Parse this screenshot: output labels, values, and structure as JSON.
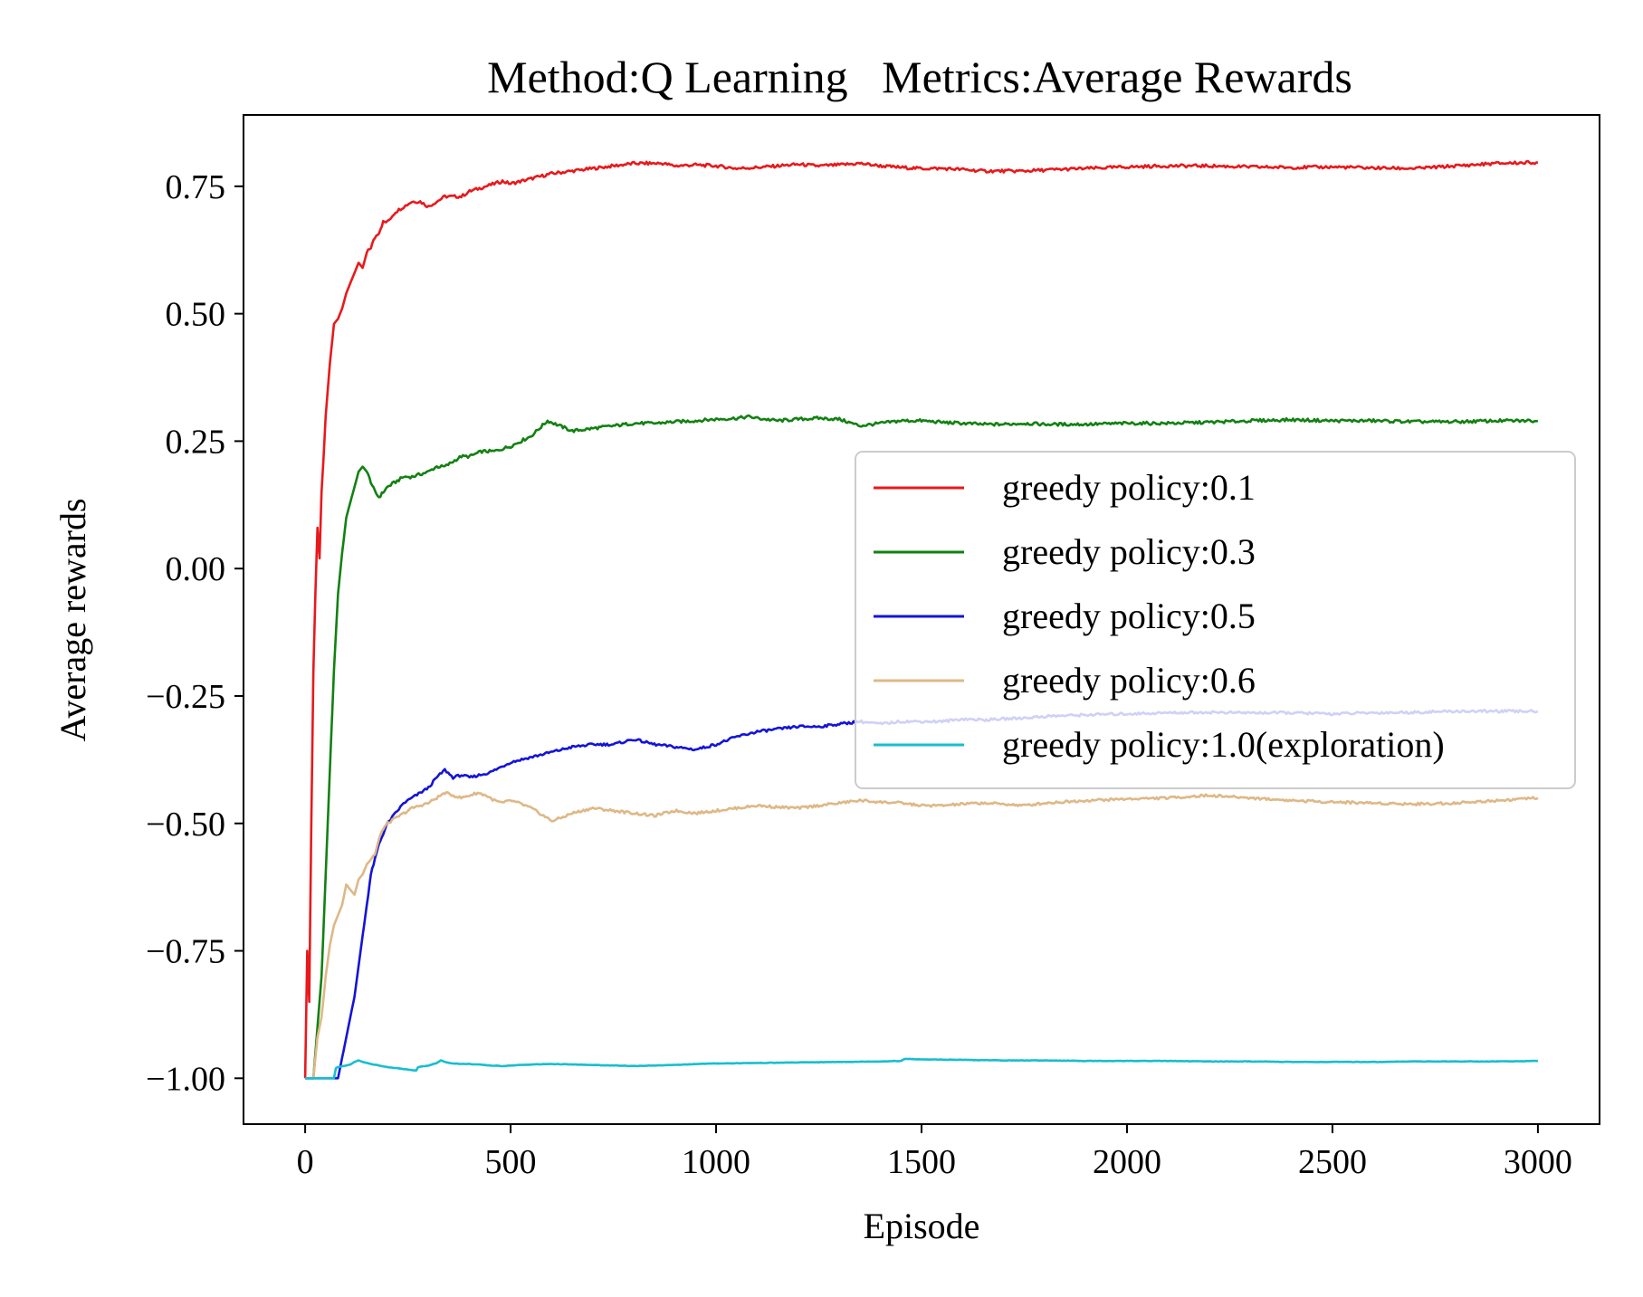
{
  "chart_data": {
    "type": "line",
    "title": "Method:Q Learning   Metrics:Average Rewards",
    "xlabel": "Episode",
    "ylabel": "Average rewards",
    "xlim": [
      -150,
      3150
    ],
    "ylim": [
      -1.09,
      0.89
    ],
    "xticks": [
      0,
      500,
      1000,
      1500,
      2000,
      2500,
      3000
    ],
    "xtick_labels": [
      "0",
      "500",
      "1000",
      "1500",
      "2000",
      "2500",
      "3000"
    ],
    "yticks": [
      0.75,
      0.5,
      0.25,
      0.0,
      -0.25,
      -0.5,
      -0.75,
      -1.0
    ],
    "ytick_labels": [
      "0.75",
      "0.50",
      "0.25",
      "0.00",
      "−0.25",
      "−0.50",
      "−0.75",
      "−1.00"
    ],
    "grid": false,
    "legend_position": "center-right",
    "series": [
      {
        "name": "greedy policy:0.1",
        "color": "#e8191c",
        "x": [
          0,
          5,
          10,
          15,
          20,
          25,
          30,
          35,
          40,
          45,
          50,
          60,
          70,
          80,
          90,
          100,
          110,
          120,
          130,
          140,
          150,
          160,
          170,
          180,
          190,
          200,
          220,
          240,
          260,
          280,
          300,
          320,
          340,
          360,
          380,
          400,
          420,
          440,
          460,
          480,
          500,
          550,
          600,
          650,
          700,
          750,
          800,
          850,
          870,
          900,
          950,
          1000,
          1050,
          1100,
          1150,
          1200,
          1250,
          1300,
          1350,
          1400,
          1450,
          1500,
          1550,
          1600,
          1650,
          1700,
          1750,
          1800,
          1900,
          2000,
          2100,
          2200,
          2300,
          2400,
          2500,
          2600,
          2700,
          2800,
          2900,
          3000
        ],
        "y": [
          -1.0,
          -0.75,
          -0.85,
          -0.5,
          -0.2,
          -0.05,
          0.08,
          0.02,
          0.15,
          0.22,
          0.3,
          0.4,
          0.48,
          0.49,
          0.51,
          0.54,
          0.56,
          0.58,
          0.6,
          0.59,
          0.62,
          0.63,
          0.65,
          0.66,
          0.68,
          0.68,
          0.7,
          0.71,
          0.72,
          0.72,
          0.71,
          0.72,
          0.73,
          0.73,
          0.73,
          0.74,
          0.745,
          0.75,
          0.755,
          0.76,
          0.755,
          0.765,
          0.775,
          0.78,
          0.785,
          0.79,
          0.795,
          0.795,
          0.795,
          0.79,
          0.792,
          0.79,
          0.785,
          0.787,
          0.79,
          0.793,
          0.79,
          0.792,
          0.795,
          0.79,
          0.787,
          0.785,
          0.785,
          0.783,
          0.78,
          0.78,
          0.78,
          0.782,
          0.785,
          0.788,
          0.79,
          0.79,
          0.788,
          0.787,
          0.788,
          0.786,
          0.785,
          0.79,
          0.795,
          0.797
        ]
      },
      {
        "name": "greedy policy:0.3",
        "color": "#128112",
        "x": [
          0,
          20,
          30,
          40,
          50,
          60,
          70,
          80,
          90,
          100,
          110,
          120,
          130,
          140,
          150,
          160,
          170,
          180,
          190,
          200,
          220,
          240,
          260,
          280,
          300,
          320,
          340,
          360,
          380,
          400,
          430,
          460,
          500,
          550,
          590,
          620,
          650,
          700,
          750,
          800,
          850,
          900,
          950,
          1000,
          1050,
          1080,
          1100,
          1150,
          1200,
          1250,
          1300,
          1350,
          1400,
          1450,
          1500,
          1550,
          1600,
          1650,
          1700,
          1750,
          1800,
          1900,
          2000,
          2100,
          2200,
          2300,
          2400,
          2500,
          2600,
          2700,
          2800,
          2900,
          3000
        ],
        "y": [
          -1.0,
          -1.0,
          -0.9,
          -0.8,
          -0.6,
          -0.4,
          -0.2,
          -0.05,
          0.03,
          0.1,
          0.13,
          0.16,
          0.19,
          0.2,
          0.19,
          0.17,
          0.15,
          0.14,
          0.15,
          0.16,
          0.17,
          0.18,
          0.18,
          0.185,
          0.19,
          0.2,
          0.2,
          0.21,
          0.22,
          0.22,
          0.23,
          0.23,
          0.24,
          0.26,
          0.29,
          0.28,
          0.27,
          0.275,
          0.28,
          0.285,
          0.285,
          0.288,
          0.29,
          0.293,
          0.295,
          0.298,
          0.295,
          0.29,
          0.293,
          0.295,
          0.293,
          0.28,
          0.285,
          0.29,
          0.29,
          0.287,
          0.285,
          0.283,
          0.283,
          0.285,
          0.283,
          0.283,
          0.285,
          0.285,
          0.287,
          0.29,
          0.292,
          0.29,
          0.29,
          0.288,
          0.288,
          0.29,
          0.29
        ]
      },
      {
        "name": "greedy policy:0.5",
        "color": "#1414d8",
        "x": [
          0,
          80,
          90,
          100,
          110,
          120,
          130,
          140,
          150,
          160,
          170,
          180,
          190,
          200,
          220,
          240,
          260,
          280,
          300,
          320,
          340,
          360,
          380,
          400,
          450,
          500,
          550,
          600,
          650,
          700,
          750,
          800,
          850,
          900,
          950,
          1000,
          1050,
          1100,
          1150,
          1200,
          1250,
          1300,
          1350,
          1400,
          1450,
          1500,
          1550,
          1600,
          1650,
          1700,
          1750,
          1800,
          1900,
          2000,
          2100,
          2200,
          2300,
          2400,
          2500,
          2600,
          2700,
          2800,
          2900,
          3000
        ],
        "y": [
          -1.0,
          -1.0,
          -0.96,
          -0.92,
          -0.88,
          -0.84,
          -0.78,
          -0.72,
          -0.66,
          -0.6,
          -0.57,
          -0.54,
          -0.52,
          -0.5,
          -0.48,
          -0.46,
          -0.45,
          -0.44,
          -0.43,
          -0.41,
          -0.395,
          -0.41,
          -0.405,
          -0.41,
          -0.4,
          -0.38,
          -0.37,
          -0.36,
          -0.35,
          -0.345,
          -0.345,
          -0.335,
          -0.345,
          -0.35,
          -0.355,
          -0.345,
          -0.33,
          -0.32,
          -0.315,
          -0.31,
          -0.31,
          -0.305,
          -0.3,
          -0.305,
          -0.3,
          -0.3,
          -0.3,
          -0.295,
          -0.297,
          -0.295,
          -0.293,
          -0.29,
          -0.287,
          -0.285,
          -0.283,
          -0.282,
          -0.283,
          -0.283,
          -0.285,
          -0.283,
          -0.282,
          -0.28,
          -0.28,
          -0.28
        ]
      },
      {
        "name": "greedy policy:0.6",
        "color": "#deb887",
        "x": [
          0,
          20,
          30,
          40,
          50,
          60,
          70,
          80,
          90,
          100,
          110,
          120,
          130,
          140,
          150,
          160,
          170,
          180,
          190,
          200,
          220,
          240,
          260,
          280,
          300,
          320,
          340,
          360,
          380,
          400,
          420,
          440,
          460,
          480,
          500,
          520,
          550,
          580,
          600,
          620,
          650,
          700,
          750,
          800,
          850,
          900,
          950,
          1000,
          1050,
          1100,
          1150,
          1200,
          1250,
          1300,
          1350,
          1400,
          1450,
          1500,
          1550,
          1600,
          1650,
          1700,
          1750,
          1800,
          1900,
          2000,
          2100,
          2200,
          2300,
          2400,
          2500,
          2600,
          2700,
          2800,
          2900,
          3000
        ],
        "y": [
          -1.0,
          -1.0,
          -0.92,
          -0.88,
          -0.8,
          -0.74,
          -0.7,
          -0.68,
          -0.66,
          -0.62,
          -0.63,
          -0.64,
          -0.61,
          -0.6,
          -0.58,
          -0.57,
          -0.56,
          -0.53,
          -0.51,
          -0.5,
          -0.49,
          -0.48,
          -0.47,
          -0.465,
          -0.46,
          -0.45,
          -0.44,
          -0.445,
          -0.45,
          -0.445,
          -0.44,
          -0.445,
          -0.455,
          -0.46,
          -0.455,
          -0.46,
          -0.47,
          -0.485,
          -0.495,
          -0.49,
          -0.48,
          -0.47,
          -0.475,
          -0.48,
          -0.485,
          -0.475,
          -0.48,
          -0.475,
          -0.47,
          -0.465,
          -0.468,
          -0.47,
          -0.465,
          -0.46,
          -0.455,
          -0.458,
          -0.46,
          -0.465,
          -0.465,
          -0.462,
          -0.46,
          -0.462,
          -0.465,
          -0.46,
          -0.455,
          -0.452,
          -0.45,
          -0.445,
          -0.45,
          -0.455,
          -0.458,
          -0.46,
          -0.462,
          -0.46,
          -0.455,
          -0.45
        ]
      },
      {
        "name": "greedy policy:1.0(exploration)",
        "color": "#17becf",
        "x": [
          0,
          70,
          75,
          80,
          100,
          110,
          120,
          130,
          140,
          160,
          180,
          200,
          220,
          250,
          270,
          275,
          300,
          320,
          330,
          340,
          350,
          380,
          400,
          420,
          450,
          480,
          500,
          550,
          600,
          650,
          700,
          750,
          800,
          850,
          900,
          950,
          1000,
          1100,
          1200,
          1300,
          1400,
          1450,
          1460,
          1500,
          1600,
          1700,
          1800,
          1900,
          2000,
          2100,
          2200,
          2300,
          2400,
          2500,
          2600,
          2700,
          2800,
          2900,
          3000
        ],
        "y": [
          -1.0,
          -1.0,
          -0.98,
          -0.978,
          -0.975,
          -0.973,
          -0.968,
          -0.965,
          -0.968,
          -0.972,
          -0.975,
          -0.978,
          -0.98,
          -0.983,
          -0.985,
          -0.978,
          -0.975,
          -0.97,
          -0.965,
          -0.968,
          -0.97,
          -0.972,
          -0.972,
          -0.973,
          -0.975,
          -0.976,
          -0.975,
          -0.973,
          -0.972,
          -0.973,
          -0.974,
          -0.975,
          -0.976,
          -0.975,
          -0.974,
          -0.972,
          -0.971,
          -0.97,
          -0.969,
          -0.968,
          -0.967,
          -0.966,
          -0.962,
          -0.963,
          -0.964,
          -0.965,
          -0.965,
          -0.966,
          -0.966,
          -0.966,
          -0.967,
          -0.967,
          -0.968,
          -0.968,
          -0.968,
          -0.967,
          -0.967,
          -0.967,
          -0.966
        ]
      }
    ]
  }
}
